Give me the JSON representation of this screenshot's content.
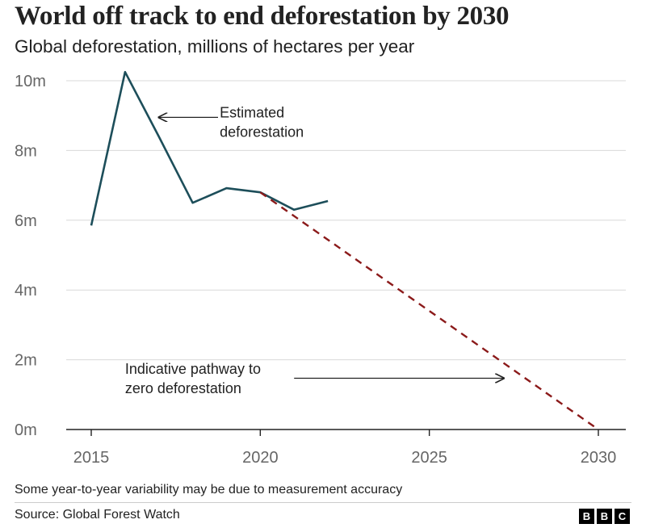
{
  "header": {
    "title": "World off track to end deforestation by 2030",
    "subtitle": "Global deforestation, millions of hectares per year"
  },
  "footer": {
    "note": "Some year-to-year variability may be due to measurement accuracy",
    "source": "Source: Global Forest Watch",
    "logo_letters": [
      "B",
      "B",
      "C"
    ]
  },
  "colors": {
    "estimated": "#1d4e5a",
    "pathway": "#8b1a1a",
    "grid": "#d9d9d9",
    "axis": "#222222",
    "tick_text": "#666666"
  },
  "chart_data": {
    "type": "line",
    "title": "World off track to end deforestation by 2030",
    "subtitle": "Global deforestation, millions of hectares per year",
    "xlabel": "",
    "ylabel": "",
    "xlim": [
      2015,
      2030
    ],
    "ylim": [
      0,
      10
    ],
    "x_ticks": [
      2015,
      2020,
      2025,
      2030
    ],
    "x_tick_labels": [
      "2015",
      "2020",
      "2025",
      "2030"
    ],
    "y_ticks": [
      0,
      2,
      4,
      6,
      8,
      10
    ],
    "y_tick_labels": [
      "0m",
      "2m",
      "4m",
      "6m",
      "8m",
      "10m"
    ],
    "grid": true,
    "series": [
      {
        "name": "Estimated deforestation",
        "style": "solid",
        "x": [
          2015,
          2016,
          2017,
          2018,
          2019,
          2020,
          2021,
          2022
        ],
        "y": [
          5.85,
          10.25,
          8.4,
          6.5,
          6.92,
          6.8,
          6.3,
          6.55
        ]
      },
      {
        "name": "Indicative pathway to zero deforestation",
        "style": "dashed",
        "x": [
          2020,
          2030
        ],
        "y": [
          6.8,
          0
        ]
      }
    ],
    "annotations": [
      {
        "lines": [
          "Estimated",
          "deforestation"
        ],
        "text_at": [
          2018.8,
          8.95
        ],
        "arrow_from": [
          2018.75,
          8.95
        ],
        "arrow_to": [
          2017.0,
          8.95
        ]
      },
      {
        "lines": [
          "Indicative pathway to",
          "zero deforestation"
        ],
        "text_at": [
          2016.0,
          1.6
        ],
        "arrow_from": [
          2021.0,
          1.47
        ],
        "arrow_to": [
          2027.2,
          1.47
        ]
      }
    ]
  }
}
